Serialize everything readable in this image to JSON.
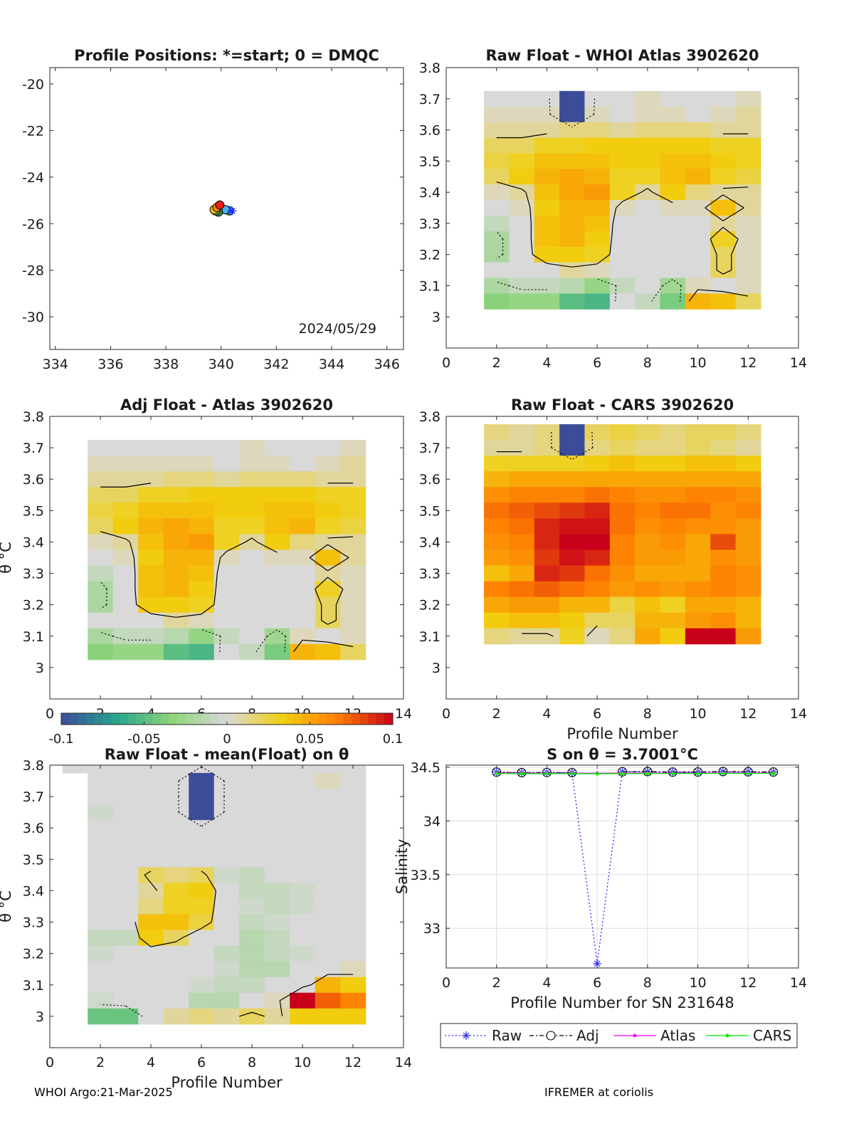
{
  "colors": {
    "contour": "#000000",
    "raw_series": "#2a2aff",
    "adj_series": "#000000",
    "atlas_series": "#ff00ff",
    "cars_series": "#00ee00"
  },
  "colorbar": {
    "ticks": [
      "-0.1",
      "-0.05",
      "0",
      "0.05",
      "0.1"
    ],
    "range": [
      -0.1,
      0.1
    ],
    "stops": [
      "#3b4d99",
      "#27a58c",
      "#8ed47a",
      "#d9d9d9",
      "#f1d00f",
      "#ff7f00",
      "#c8001a"
    ]
  },
  "chart_data": [
    {
      "id": "positions",
      "type": "scatter",
      "title": "Profile Positions: *=start; 0 = DMQC",
      "xlim": [
        333.8,
        346.6
      ],
      "ylim": [
        -31.4,
        -19.3
      ],
      "xticks": [
        "334",
        "336",
        "338",
        "340",
        "342",
        "344",
        "346"
      ],
      "yticks": [
        "-20",
        "-22",
        "-24",
        "-26",
        "-28",
        "-30"
      ],
      "xtick_values": [
        334,
        336,
        338,
        340,
        342,
        344,
        346
      ],
      "ytick_values": [
        -20,
        -22,
        -24,
        -26,
        -28,
        -30
      ],
      "annotation": "2024/05/29",
      "points": [
        {
          "x": 340.3,
          "y": -25.45,
          "color": "#1e90ff"
        },
        {
          "x": 340.15,
          "y": -25.4,
          "color": "#4ab0e8"
        },
        {
          "x": 339.9,
          "y": -25.5,
          "color": "#2e8b57"
        },
        {
          "x": 339.8,
          "y": -25.45,
          "color": "#9acd32"
        },
        {
          "x": 339.75,
          "y": -25.4,
          "color": "#f0c000"
        },
        {
          "x": 339.85,
          "y": -25.3,
          "color": "#ff8c00"
        },
        {
          "x": 339.95,
          "y": -25.2,
          "color": "#e8201a"
        }
      ],
      "start": {
        "x": 340.4,
        "y": -25.45
      }
    },
    {
      "id": "raw_whoi",
      "type": "heatmap",
      "title": "Raw Float - WHOI Atlas  3902620",
      "xlim": [
        0,
        14
      ],
      "ylim": [
        2.9,
        3.8
      ],
      "xticks": [
        "0",
        "2",
        "4",
        "6",
        "8",
        "10",
        "12",
        "14"
      ],
      "yticks": [
        "3.8",
        "3.7",
        "3.6",
        "3.5",
        "3.4",
        "3.3",
        "3.2",
        "3.1",
        "3"
      ],
      "xtick_values": [
        0,
        2,
        4,
        6,
        8,
        10,
        12,
        14
      ],
      "ytick_values": [
        3.8,
        3.7,
        3.6,
        3.5,
        3.4,
        3.3,
        3.2,
        3.1,
        3.0
      ],
      "xlabel": "",
      "ylabel": "",
      "cols": [
        2,
        13
      ],
      "y_top": 3.7,
      "y_step": 0.05,
      "cells": [
        [
          0,
          0,
          0,
          -0.15,
          0,
          0,
          0.005,
          0,
          0,
          0,
          0.005
        ],
        [
          0.005,
          0.005,
          0.005,
          -0.15,
          0.005,
          0,
          0.005,
          0.005,
          0,
          0.005,
          0.01
        ],
        [
          0.01,
          0.01,
          0.01,
          0.015,
          0.015,
          0.01,
          0.015,
          0.015,
          0.015,
          0.01,
          0.01
        ],
        [
          0.02,
          0.02,
          0.03,
          0.03,
          0.035,
          0.035,
          0.035,
          0.035,
          0.035,
          0.03,
          0.03
        ],
        [
          0.025,
          0.03,
          0.04,
          0.04,
          0.04,
          0.035,
          0.035,
          0.04,
          0.04,
          0.035,
          0.03
        ],
        [
          0.02,
          0.035,
          0.045,
          0.05,
          0.045,
          0.03,
          0.03,
          0.04,
          0.045,
          0.03,
          0.025
        ],
        [
          0.005,
          0.01,
          0.04,
          0.05,
          0.055,
          0.03,
          0.01,
          0.035,
          0.015,
          0.01,
          0.01
        ],
        [
          0,
          0.005,
          0.035,
          0.045,
          0.045,
          0.005,
          0,
          0.005,
          0.005,
          0.04,
          0.01
        ],
        [
          -0.01,
          0,
          0.04,
          0.045,
          0.04,
          0,
          0,
          0,
          0,
          0.01,
          0.005
        ],
        [
          -0.02,
          0,
          0.04,
          0.045,
          0.035,
          0,
          0,
          0,
          0,
          0.03,
          0.005
        ],
        [
          -0.02,
          0,
          0.035,
          0.035,
          0.03,
          0,
          0,
          0,
          0,
          0.02,
          0.005
        ],
        [
          0,
          0,
          0,
          0.01,
          0.005,
          0,
          0,
          0,
          0,
          0.02,
          0.005
        ],
        [
          -0.02,
          -0.01,
          -0.01,
          -0.015,
          -0.03,
          -0.01,
          0,
          -0.025,
          0.005,
          0,
          0.005
        ],
        [
          -0.035,
          -0.03,
          -0.03,
          -0.05,
          -0.055,
          0,
          -0.01,
          -0.04,
          0.045,
          0.04,
          0.02
        ]
      ]
    },
    {
      "id": "adj_atlas",
      "type": "heatmap",
      "title": "Adj Float - Atlas  3902620",
      "xlim": [
        0,
        14
      ],
      "ylim": [
        2.9,
        3.8
      ],
      "xticks": [
        "0",
        "2",
        "4",
        "6",
        "8",
        "10",
        "12",
        "14"
      ],
      "yticks": [
        "3.8",
        "3.7",
        "3.6",
        "3.5",
        "3.4",
        "3.3",
        "3.2",
        "3.1",
        "3"
      ],
      "xtick_values": [
        0,
        2,
        4,
        6,
        8,
        10,
        12,
        14
      ],
      "ytick_values": [
        3.8,
        3.7,
        3.6,
        3.5,
        3.4,
        3.3,
        3.2,
        3.1,
        3.0
      ],
      "xlabel": "",
      "ylabel": "θ °C",
      "cols": [
        2,
        13
      ],
      "y_top": 3.7,
      "y_step": 0.05,
      "cells": [
        [
          0,
          0,
          0,
          0,
          0,
          0,
          0.005,
          0,
          0,
          0,
          0.005
        ],
        [
          0.005,
          0.005,
          0.005,
          0.005,
          0.005,
          0,
          0.005,
          0.005,
          0,
          0.005,
          0.01
        ],
        [
          0.01,
          0.01,
          0.01,
          0.015,
          0.015,
          0.01,
          0.015,
          0.015,
          0.015,
          0.01,
          0.01
        ],
        [
          0.02,
          0.02,
          0.03,
          0.03,
          0.035,
          0.035,
          0.035,
          0.035,
          0.035,
          0.03,
          0.03
        ],
        [
          0.025,
          0.03,
          0.04,
          0.04,
          0.04,
          0.035,
          0.035,
          0.04,
          0.04,
          0.035,
          0.03
        ],
        [
          0.02,
          0.035,
          0.045,
          0.05,
          0.045,
          0.03,
          0.03,
          0.04,
          0.045,
          0.03,
          0.025
        ],
        [
          0.005,
          0.01,
          0.04,
          0.05,
          0.055,
          0.03,
          0.01,
          0.035,
          0.015,
          0.01,
          0.01
        ],
        [
          0,
          0.005,
          0.035,
          0.045,
          0.045,
          0.005,
          0,
          0.005,
          0.005,
          0.04,
          0.01
        ],
        [
          -0.01,
          0,
          0.04,
          0.045,
          0.04,
          0,
          0,
          0,
          0,
          0.01,
          0.005
        ],
        [
          -0.02,
          0,
          0.04,
          0.045,
          0.035,
          0,
          0,
          0,
          0,
          0.03,
          0.005
        ],
        [
          -0.02,
          0,
          0.035,
          0.035,
          0.03,
          0,
          0,
          0,
          0,
          0.02,
          0.005
        ],
        [
          0,
          0,
          0,
          0.01,
          0.005,
          0,
          0,
          0,
          0,
          0.02,
          0.005
        ],
        [
          -0.02,
          -0.01,
          -0.01,
          -0.015,
          -0.03,
          -0.01,
          0,
          -0.025,
          0.005,
          0,
          0.005
        ],
        [
          -0.035,
          -0.03,
          -0.03,
          -0.05,
          -0.055,
          0,
          -0.01,
          -0.04,
          0.045,
          0.04,
          0.02
        ]
      ]
    },
    {
      "id": "raw_cars",
      "type": "heatmap",
      "title": "Raw Float - CARS  3902620",
      "xlim": [
        0,
        14
      ],
      "ylim": [
        2.9,
        3.8
      ],
      "xticks": [
        "0",
        "2",
        "4",
        "6",
        "8",
        "10",
        "12",
        "14"
      ],
      "yticks": [
        "3.8",
        "3.7",
        "3.6",
        "3.5",
        "3.4",
        "3.3",
        "3.2",
        "3.1",
        "3"
      ],
      "xtick_values": [
        0,
        2,
        4,
        6,
        8,
        10,
        12,
        14
      ],
      "ytick_values": [
        3.8,
        3.7,
        3.6,
        3.5,
        3.4,
        3.3,
        3.2,
        3.1,
        3.0
      ],
      "xlabel": "Profile Number",
      "ylabel": "",
      "cols": [
        2,
        13
      ],
      "y_top": 3.75,
      "y_step": 0.05,
      "cells": [
        [
          0.015,
          0.01,
          0.015,
          -0.15,
          0.02,
          0.025,
          0.02,
          0.015,
          0.02,
          0.02,
          0.015
        ],
        [
          0.01,
          0.01,
          0.015,
          -0.15,
          0.015,
          0.02,
          0.015,
          0.015,
          0.02,
          0.015,
          0.01
        ],
        [
          0.03,
          0.03,
          0.03,
          0.03,
          0.035,
          0.04,
          0.035,
          0.035,
          0.04,
          0.04,
          0.035
        ],
        [
          0.045,
          0.05,
          0.05,
          0.05,
          0.05,
          0.05,
          0.05,
          0.05,
          0.05,
          0.05,
          0.05
        ],
        [
          0.06,
          0.065,
          0.065,
          0.065,
          0.07,
          0.065,
          0.06,
          0.06,
          0.065,
          0.065,
          0.06
        ],
        [
          0.07,
          0.075,
          0.08,
          0.085,
          0.09,
          0.07,
          0.065,
          0.07,
          0.07,
          0.06,
          0.065
        ],
        [
          0.065,
          0.07,
          0.09,
          0.095,
          0.095,
          0.07,
          0.06,
          0.065,
          0.06,
          0.06,
          0.055
        ],
        [
          0.06,
          0.065,
          0.09,
          0.1,
          0.1,
          0.065,
          0.055,
          0.06,
          0.05,
          0.08,
          0.055
        ],
        [
          0.055,
          0.06,
          0.085,
          0.095,
          0.09,
          0.065,
          0.055,
          0.055,
          0.05,
          0.06,
          0.055
        ],
        [
          0.04,
          0.05,
          0.09,
          0.085,
          0.07,
          0.06,
          0.05,
          0.05,
          0.05,
          0.065,
          0.06
        ],
        [
          0.065,
          0.07,
          0.075,
          0.07,
          0.065,
          0.055,
          0.06,
          0.055,
          0.06,
          0.065,
          0.06
        ],
        [
          0.05,
          0.055,
          0.055,
          0.045,
          0.045,
          0.025,
          0.04,
          0.03,
          0.05,
          0.05,
          0.045
        ],
        [
          0.035,
          0.04,
          0.04,
          0.035,
          0.02,
          0.02,
          0.045,
          0.045,
          0.055,
          0.06,
          0.045
        ],
        [
          0.015,
          0.01,
          0.01,
          0.03,
          0.005,
          0.015,
          0.05,
          0.035,
          0.1,
          0.1,
          0.055
        ]
      ]
    },
    {
      "id": "raw_mean",
      "type": "heatmap",
      "title": "Raw Float - mean(Float) on θ",
      "xlim": [
        0,
        14
      ],
      "ylim": [
        2.9,
        3.8
      ],
      "xticks": [
        "0",
        "2",
        "4",
        "6",
        "8",
        "10",
        "12",
        "14"
      ],
      "yticks": [
        "3.8",
        "3.7",
        "3.6",
        "3.5",
        "3.4",
        "3.3",
        "3.2",
        "3.1",
        "3"
      ],
      "xtick_values": [
        0,
        2,
        4,
        6,
        8,
        10,
        12,
        14
      ],
      "ytick_values": [
        3.8,
        3.7,
        3.6,
        3.5,
        3.4,
        3.3,
        3.2,
        3.1,
        3.0
      ],
      "xlabel": "Profile Number",
      "ylabel": "θ °C",
      "cols": [
        1,
        13
      ],
      "y_top": 3.8,
      "y_step": 0.05,
      "cells": [
        [
          0,
          0,
          0,
          0,
          0,
          0,
          0,
          0,
          0,
          0,
          0,
          0
        ],
        [
          null,
          0,
          0,
          0,
          0,
          -0.15,
          0,
          0,
          0,
          0,
          0.005,
          0
        ],
        [
          null,
          0,
          0,
          0,
          0,
          -0.15,
          0,
          0,
          0,
          0,
          0,
          0
        ],
        [
          null,
          -0.005,
          0,
          0,
          0,
          -0.15,
          0,
          0,
          0,
          0,
          0,
          0
        ],
        [
          null,
          0,
          0,
          0,
          0,
          0,
          0,
          0,
          0,
          0,
          0,
          0
        ],
        [
          null,
          0,
          0,
          0,
          0,
          0,
          0,
          0,
          0,
          0,
          0,
          0
        ],
        [
          null,
          0,
          0,
          0,
          0,
          0,
          0,
          0,
          0,
          0,
          0,
          0
        ],
        [
          null,
          0,
          0,
          0.02,
          0.015,
          0.02,
          -0.005,
          -0.01,
          0,
          0,
          0,
          0
        ],
        [
          null,
          0,
          0,
          0.01,
          0.03,
          0.035,
          0,
          -0.01,
          -0.01,
          -0.005,
          0,
          0
        ],
        [
          null,
          0,
          0,
          0.015,
          0.03,
          0.03,
          0,
          -0.005,
          -0.01,
          -0.005,
          0,
          0
        ],
        [
          null,
          0,
          0,
          0.04,
          0.04,
          0.025,
          0,
          -0.01,
          -0.005,
          0,
          0,
          0
        ],
        [
          null,
          -0.01,
          -0.01,
          0.035,
          0.02,
          0,
          0,
          -0.015,
          -0.01,
          0,
          0,
          0
        ],
        [
          null,
          -0.005,
          0,
          0,
          0,
          0,
          -0.01,
          -0.015,
          -0.01,
          -0.005,
          0,
          0
        ],
        [
          null,
          0,
          0,
          0,
          0,
          0,
          -0.005,
          -0.015,
          -0.015,
          0,
          0,
          0.005
        ],
        [
          null,
          0,
          0,
          0,
          0,
          -0.005,
          -0.01,
          -0.01,
          0,
          0,
          0.045,
          0.035
        ],
        [
          null,
          -0.005,
          0,
          0,
          0,
          -0.015,
          -0.015,
          0,
          0.005,
          0.1,
          0.075,
          0.065
        ],
        [
          null,
          -0.045,
          -0.045,
          0,
          0.01,
          0.015,
          0.01,
          0.02,
          0.01,
          0.035,
          0.035,
          0.035
        ]
      ]
    },
    {
      "id": "salinity",
      "type": "line",
      "title": "S on θ = 3.7001°C",
      "xlabel": "Profile Number for SN 231648",
      "ylabel": "Salinity",
      "xlim": [
        0,
        14
      ],
      "ylim": [
        32.63,
        34.52
      ],
      "xticks": [
        "0",
        "2",
        "4",
        "6",
        "8",
        "10",
        "12",
        "14"
      ],
      "yticks": [
        "34.5",
        "34",
        "33.5",
        "33"
      ],
      "xtick_values": [
        0,
        2,
        4,
        6,
        8,
        10,
        12,
        14
      ],
      "ytick_values": [
        34.5,
        34.0,
        33.5,
        33.0
      ],
      "x": [
        2,
        3,
        4,
        5,
        6,
        7,
        8,
        9,
        10,
        11,
        12,
        13
      ],
      "series": [
        {
          "name": "Raw",
          "values": [
            34.455,
            34.45,
            34.452,
            34.45,
            32.67,
            34.458,
            34.46,
            34.455,
            34.456,
            34.46,
            34.458,
            34.456
          ]
        },
        {
          "name": "Adj",
          "values": [
            34.455,
            34.45,
            34.452,
            34.45,
            null,
            34.458,
            34.46,
            34.455,
            34.456,
            34.46,
            34.458,
            34.456
          ]
        },
        {
          "name": "Atlas",
          "values": [
            34.447,
            34.446,
            34.446,
            34.445,
            34.445,
            34.446,
            34.447,
            34.447,
            34.447,
            34.448,
            34.448,
            34.447
          ]
        },
        {
          "name": "CARS",
          "values": [
            34.442,
            34.441,
            34.441,
            34.441,
            34.44,
            34.441,
            34.442,
            34.442,
            34.442,
            34.443,
            34.443,
            34.443
          ]
        }
      ],
      "legend": [
        "Raw",
        "Adj",
        "Atlas",
        "CARS"
      ],
      "grid": true
    }
  ],
  "footer": {
    "left": "WHOI Argo:21-Mar-2025",
    "right": "IFREMER at coriolis"
  }
}
